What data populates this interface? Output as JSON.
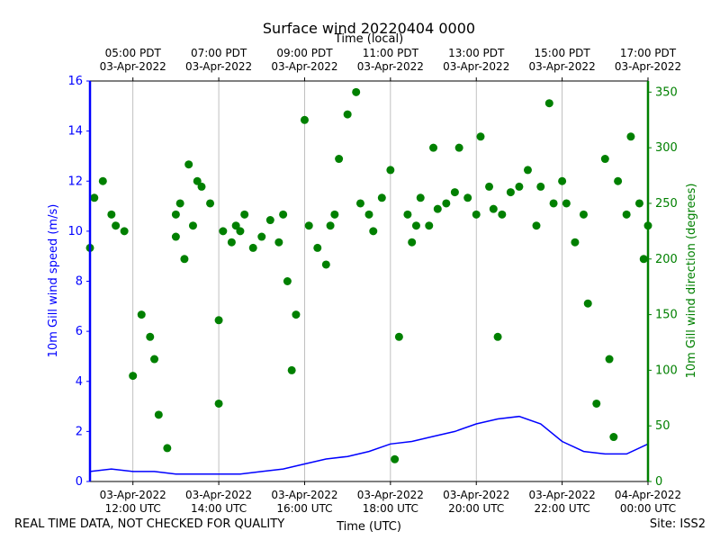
{
  "footer": {
    "left_note": "REAL TIME DATA, NOT CHECKED FOR QUALITY",
    "site": "Site: ISS2"
  },
  "colors": {
    "speed": "#0000ff",
    "direction": "#008000",
    "grid": "#b0b0b0"
  },
  "chart_data": {
    "type": "line",
    "title": "Surface wind 20220404 0000",
    "xlabel": "Time (UTC)",
    "xlabel_top": "Time (local)",
    "ylabel_left": "10m Gill wind speed (m/s)",
    "ylabel_right": "10m Gill wind direction (degrees)",
    "xlim_hours_utc": [
      11.0,
      24.0
    ],
    "ylim_left": [
      0,
      16
    ],
    "ylim_right": [
      0,
      360
    ],
    "yticks_left": [
      "0",
      "2",
      "4",
      "6",
      "8",
      "10",
      "12",
      "14",
      "16"
    ],
    "yticks_right": [
      "0",
      "50",
      "100",
      "150",
      "200",
      "250",
      "300",
      "350"
    ],
    "xticks_bottom": [
      {
        "hour": 12,
        "date": "03-Apr-2022",
        "time": "12:00 UTC"
      },
      {
        "hour": 14,
        "date": "03-Apr-2022",
        "time": "14:00 UTC"
      },
      {
        "hour": 16,
        "date": "03-Apr-2022",
        "time": "16:00 UTC"
      },
      {
        "hour": 18,
        "date": "03-Apr-2022",
        "time": "18:00 UTC"
      },
      {
        "hour": 20,
        "date": "03-Apr-2022",
        "time": "20:00 UTC"
      },
      {
        "hour": 22,
        "date": "03-Apr-2022",
        "time": "22:00 UTC"
      },
      {
        "hour": 24,
        "date": "04-Apr-2022",
        "time": "00:00 UTC"
      }
    ],
    "xticks_top": [
      {
        "hour": 12,
        "time": "05:00 PDT",
        "date": "03-Apr-2022"
      },
      {
        "hour": 14,
        "time": "07:00 PDT",
        "date": "03-Apr-2022"
      },
      {
        "hour": 16,
        "time": "09:00 PDT",
        "date": "03-Apr-2022"
      },
      {
        "hour": 18,
        "time": "11:00 PDT",
        "date": "03-Apr-2022"
      },
      {
        "hour": 20,
        "time": "13:00 PDT",
        "date": "03-Apr-2022"
      },
      {
        "hour": 22,
        "time": "15:00 PDT",
        "date": "03-Apr-2022"
      },
      {
        "hour": 24,
        "time": "17:00 PDT",
        "date": "03-Apr-2022"
      }
    ],
    "series": [
      {
        "name": "10m Gill wind speed (m/s)",
        "axis": "left",
        "style": "line",
        "x": [
          11.0,
          11.5,
          12.0,
          12.5,
          13.0,
          13.5,
          14.0,
          14.5,
          15.0,
          15.5,
          16.0,
          16.5,
          17.0,
          17.5,
          18.0,
          18.5,
          19.0,
          19.5,
          20.0,
          20.5,
          21.0,
          21.5,
          22.0,
          22.5,
          23.0,
          23.5,
          24.0
        ],
        "y": [
          0.4,
          0.5,
          0.4,
          0.4,
          0.3,
          0.3,
          0.3,
          0.3,
          0.4,
          0.5,
          0.7,
          0.9,
          1.0,
          1.2,
          1.5,
          1.6,
          1.8,
          2.0,
          2.3,
          2.5,
          2.6,
          2.3,
          1.6,
          1.2,
          1.1,
          1.1,
          1.5
        ]
      },
      {
        "name": "10m Gill wind direction (degrees)",
        "axis": "right",
        "style": "scatter",
        "x": [
          11.0,
          11.1,
          11.3,
          11.5,
          11.6,
          11.8,
          12.0,
          12.2,
          12.4,
          12.5,
          12.6,
          12.8,
          13.0,
          13.0,
          13.1,
          13.2,
          13.3,
          13.4,
          13.5,
          13.6,
          13.8,
          14.0,
          14.0,
          14.1,
          14.3,
          14.4,
          14.5,
          14.6,
          14.8,
          15.0,
          15.2,
          15.4,
          15.5,
          15.6,
          15.7,
          15.8,
          16.0,
          16.1,
          16.3,
          16.5,
          16.6,
          16.7,
          16.8,
          17.0,
          17.2,
          17.3,
          17.5,
          17.6,
          17.8,
          18.0,
          18.1,
          18.2,
          18.4,
          18.5,
          18.6,
          18.7,
          18.9,
          19.0,
          19.1,
          19.3,
          19.5,
          19.6,
          19.8,
          20.0,
          20.1,
          20.3,
          20.4,
          20.5,
          20.6,
          20.8,
          21.0,
          21.2,
          21.4,
          21.5,
          21.7,
          21.8,
          22.0,
          22.1,
          22.3,
          22.5,
          22.6,
          22.8,
          23.0,
          23.1,
          23.2,
          23.3,
          23.5,
          23.6,
          23.8,
          23.9,
          24.0
        ],
        "y": [
          210,
          255,
          270,
          240,
          230,
          225,
          95,
          150,
          130,
          110,
          60,
          30,
          220,
          240,
          250,
          200,
          285,
          230,
          270,
          265,
          250,
          145,
          70,
          225,
          215,
          230,
          225,
          240,
          210,
          220,
          235,
          215,
          240,
          180,
          100,
          150,
          325,
          230,
          210,
          195,
          230,
          240,
          290,
          330,
          350,
          250,
          240,
          225,
          255,
          280,
          20,
          130,
          240,
          215,
          230,
          255,
          230,
          300,
          245,
          250,
          260,
          300,
          255,
          240,
          310,
          265,
          245,
          130,
          240,
          260,
          265,
          280,
          230,
          265,
          340,
          250,
          270,
          250,
          215,
          240,
          160,
          70,
          290,
          110,
          40,
          270,
          240,
          310,
          250,
          200,
          230
        ]
      }
    ]
  }
}
